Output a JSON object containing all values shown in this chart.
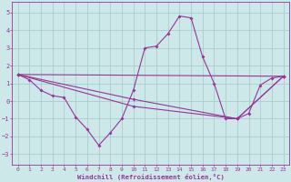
{
  "background_color": "#cce8e8",
  "grid_color": "#aacccc",
  "line_color": "#993399",
  "xlabel": "Windchill (Refroidissement éolien,°C)",
  "xlim": [
    -0.5,
    23.5
  ],
  "ylim": [
    -3.6,
    5.6
  ],
  "yticks": [
    -3,
    -2,
    -1,
    0,
    1,
    2,
    3,
    4,
    5
  ],
  "xticks": [
    0,
    1,
    2,
    3,
    4,
    5,
    6,
    7,
    8,
    9,
    10,
    11,
    12,
    13,
    14,
    15,
    16,
    17,
    18,
    19,
    20,
    21,
    22,
    23
  ],
  "series0": {
    "x": [
      0,
      1,
      2,
      3,
      4,
      5,
      6,
      7,
      8,
      9,
      10,
      11,
      12,
      13,
      14,
      15,
      16,
      17,
      18,
      19,
      20,
      21,
      22,
      23
    ],
    "y": [
      1.5,
      1.2,
      0.6,
      0.3,
      0.2,
      -0.9,
      -1.6,
      -2.5,
      -1.8,
      -1.0,
      0.6,
      3.0,
      3.1,
      3.8,
      4.8,
      4.7,
      2.5,
      1.0,
      -1.0,
      -1.0,
      -0.7,
      0.9,
      1.3,
      1.4
    ]
  },
  "series1": {
    "x": [
      0,
      23
    ],
    "y": [
      1.5,
      1.4
    ]
  },
  "series2": {
    "x": [
      0,
      10,
      19,
      23
    ],
    "y": [
      1.5,
      0.1,
      -1.0,
      1.4
    ]
  },
  "series3": {
    "x": [
      0,
      10,
      19,
      23
    ],
    "y": [
      1.5,
      -0.3,
      -1.0,
      1.4
    ]
  }
}
